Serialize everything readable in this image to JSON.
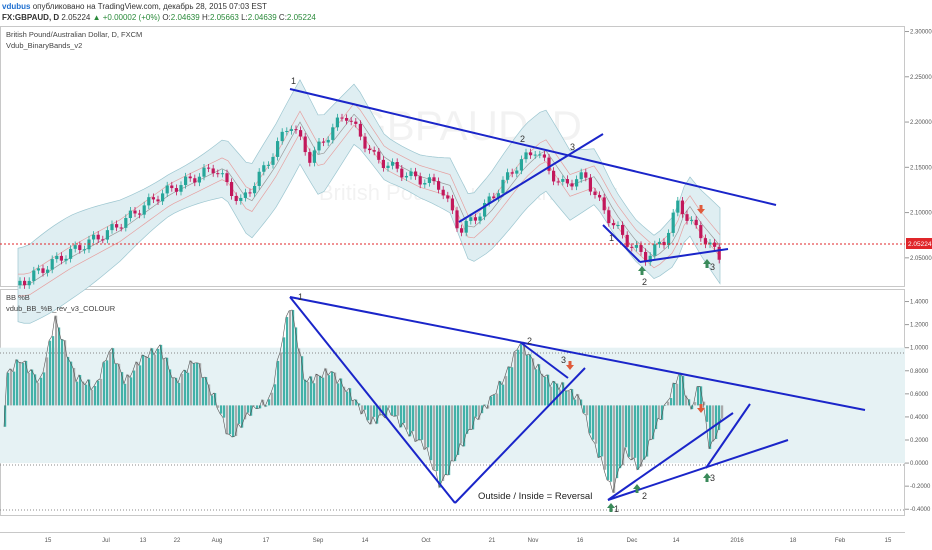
{
  "header": {
    "user": "vdubus",
    "published": "опубликовано на TradingView.com, декабрь 28, 2015 07:03 EST",
    "symbol": "FX:GBPAUD, D",
    "price": "2.05224",
    "change": "▲ +0.00002 (+0%)",
    "o_label": "O:",
    "o": "2.04639",
    "h_label": "H:",
    "h": "2.05663",
    "l_label": "L:",
    "l": "2.04639",
    "c_label": "C:",
    "c": "2.05224"
  },
  "top_pane": {
    "title": "British Pound/Australian Dollar, D, FXCM",
    "indicator": "Vdub_BinaryBands_v2",
    "watermark": "GBPAUD, D",
    "watermark2": "British Pound/Australian Dollar",
    "price_tag": "2.05224"
  },
  "bottom_pane": {
    "title": "BB %B",
    "indicator": "vdub_BB_%B_rev_v3_COLOUR",
    "note": "Outside / Inside = Reversal"
  },
  "colors": {
    "up": "#26a69a",
    "down": "#c2185b",
    "trendline": "#1a25c9",
    "band_fill": "#dfeef2",
    "arrow_up": "#3a8a5a",
    "arrow_down": "#e05a3a",
    "price_line": "#e0262a"
  },
  "chart_data": [
    {
      "type": "candlestick",
      "y_axis_ticks": [
        "2.30000",
        "2.25000",
        "2.20000",
        "2.15000",
        "2.10000",
        "2.05000"
      ],
      "ylim": [
        2.02,
        2.305
      ],
      "last_price": 2.05224,
      "annotations": [
        "1",
        "2",
        "3",
        "1",
        "2",
        "3"
      ]
    },
    {
      "type": "histogram",
      "y_axis_ticks": [
        "1.4000",
        "1.2000",
        "1.0000",
        "0.8000",
        "0.6000",
        "0.4000",
        "0.2000",
        "0.0000",
        "-0.2000",
        "-0.4000"
      ],
      "ylim": [
        -0.45,
        1.5
      ],
      "baseline": 0.5,
      "annotations": [
        "1",
        "2",
        "3",
        "1",
        "2",
        "3"
      ]
    }
  ],
  "x_axis_ticks": [
    "15",
    "Jul",
    "13",
    "22",
    "Aug",
    "17",
    "Sep",
    "14",
    "Oct",
    "21",
    "Nov",
    "16",
    "Dec",
    "14",
    "2016",
    "18",
    "Feb",
    "15"
  ]
}
